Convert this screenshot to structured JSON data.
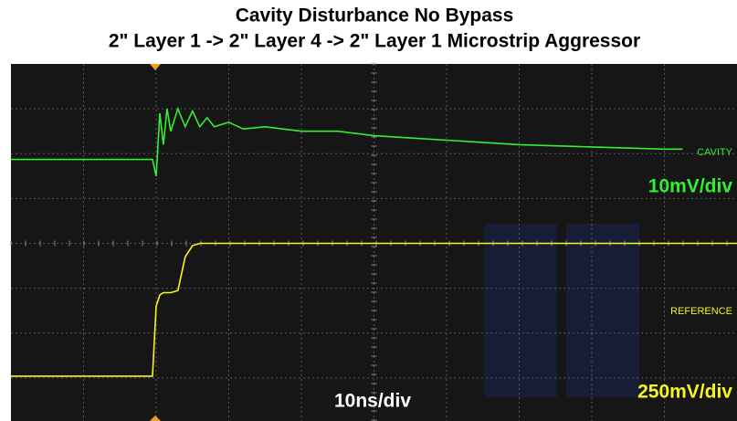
{
  "chart_data": {
    "type": "line",
    "title": "Cavity Disturbance  No Bypass",
    "subtitle": "2\" Layer 1 -> 2\" Layer 4 -> 2\" Layer 1 Microstrip Aggressor",
    "x_scale_label": "10ns/div",
    "xlim": [
      0,
      100
    ],
    "ylim": [
      0,
      8
    ],
    "x": [
      0,
      10,
      19.5,
      20,
      20.5,
      21,
      21.5,
      22,
      23,
      24,
      25,
      26,
      27,
      28,
      30,
      32,
      35,
      40,
      45,
      50,
      55,
      60,
      70,
      80,
      90,
      92.5,
      100
    ],
    "series": [
      {
        "name": "CAVITY",
        "scale_label": "10mV/div",
        "color": "#33ee33",
        "values": [
          5.87,
          5.87,
          5.87,
          5.5,
          6.9,
          6.2,
          7.0,
          6.5,
          7.0,
          6.6,
          6.95,
          6.6,
          6.8,
          6.6,
          6.7,
          6.55,
          6.6,
          6.5,
          6.5,
          6.4,
          6.35,
          6.3,
          6.2,
          6.15,
          6.1,
          6.1,
          null
        ]
      },
      {
        "name": "REFERENCE",
        "scale_label": "250mV/div",
        "color": "#f5f520",
        "values": [
          1.04,
          1.04,
          1.04,
          2.6,
          2.85,
          2.9,
          2.9,
          2.9,
          2.95,
          3.7,
          3.95,
          4.0,
          4.0,
          4.0,
          4.0,
          4.0,
          4.0,
          4.0,
          4.0,
          4.0,
          4.0,
          4.0,
          4.0,
          4.0,
          4.0,
          4.0,
          4.0
        ]
      }
    ]
  }
}
